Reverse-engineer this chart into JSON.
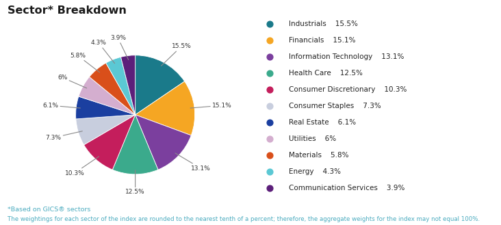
{
  "title": "Sector* Breakdown",
  "sectors": [
    {
      "label": "Industrials",
      "value": 15.5,
      "color": "#1A7A8A"
    },
    {
      "label": "Financials",
      "value": 15.1,
      "color": "#F5A623"
    },
    {
      "label": "Information Technology",
      "value": 13.1,
      "color": "#7B3F9E"
    },
    {
      "label": "Health Care",
      "value": 12.5,
      "color": "#3BAA8C"
    },
    {
      "label": "Consumer Discretionary",
      "value": 10.3,
      "color": "#C41E5C"
    },
    {
      "label": "Consumer Staples",
      "value": 7.3,
      "color": "#C8CEDE"
    },
    {
      "label": "Real Estate",
      "value": 6.1,
      "color": "#1B3FA0"
    },
    {
      "label": "Utilities",
      "value": 6.0,
      "color": "#D4AECF"
    },
    {
      "label": "Materials",
      "value": 5.8,
      "color": "#D94F1A"
    },
    {
      "label": "Energy",
      "value": 4.3,
      "color": "#5BC8D4"
    },
    {
      "label": "Communication Services",
      "value": 3.9,
      "color": "#5C1F7A"
    }
  ],
  "legend_values": [
    "15.5%",
    "15.1%",
    "13.1%",
    "12.5%",
    "10.3%",
    "7.3%",
    "6.1%",
    "6%",
    "5.8%",
    "4.3%",
    "3.9%"
  ],
  "footnote1": "*Based on GICS® sectors",
  "footnote2": "The weightings for each sector of the index are rounded to the nearest tenth of a percent; therefore, the aggregate weights for the index may not equal 100%.",
  "footnote_color": "#4AABBF",
  "title_color": "#1a1a1a",
  "background_color": "#ffffff",
  "label_color": "#333333",
  "line_color": "#888888"
}
